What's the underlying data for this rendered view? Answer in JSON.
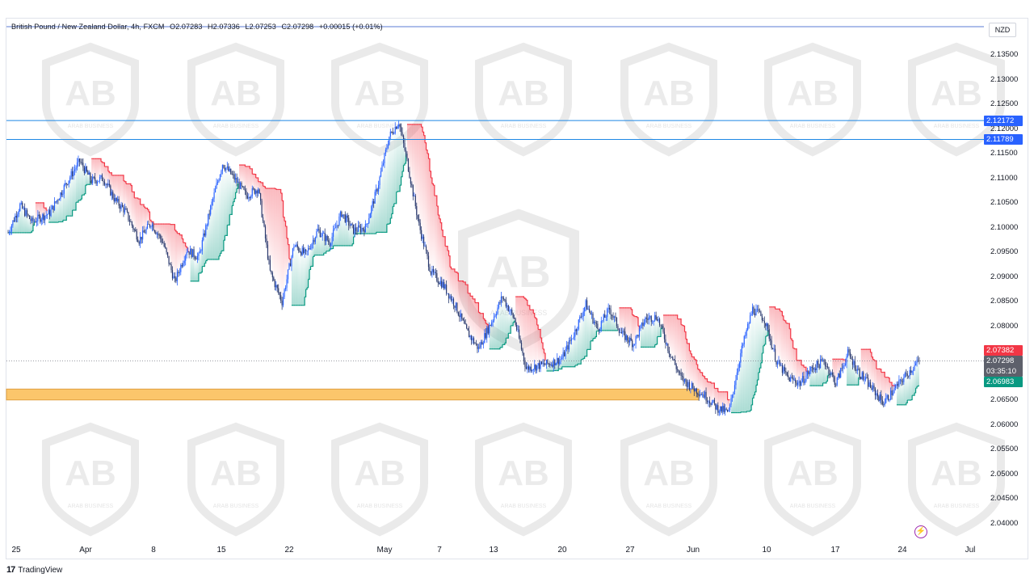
{
  "legend": {
    "symbol": "British Pound / New Zealand Dollar, 4h, FXCM",
    "open": "O2.07283",
    "high": "H2.07336",
    "low": "L2.07253",
    "close": "C2.07298",
    "change": "+0.00015 (+0.01%)"
  },
  "currency": "NZD",
  "y_ticks": [
    "2.13500",
    "2.13000",
    "2.12500",
    "2.12000",
    "2.11500",
    "2.11000",
    "2.10500",
    "2.10000",
    "2.09500",
    "2.09000",
    "2.08500",
    "2.08000",
    "2.07500",
    "2.07000",
    "2.06500",
    "2.06000",
    "2.05500",
    "2.05000",
    "2.04500",
    "2.04000"
  ],
  "x_ticks": [
    "25",
    "Apr",
    "8",
    "15",
    "22",
    "May",
    "7",
    "13",
    "20",
    "27",
    "Jun",
    "10",
    "17",
    "24",
    "Jul"
  ],
  "price_tags": {
    "level_upper": "2.12172",
    "level_lower": "2.11789",
    "red_level": "2.07382",
    "current": "2.07298",
    "countdown": "03:35:10",
    "green_level": "2.06983"
  },
  "footer": {
    "brand": "TradingView"
  },
  "watermark": {
    "text": "ARAB BUSINESS"
  },
  "colors": {
    "candle": "#2962ff",
    "candle_dark": "#2a3a6e",
    "support_zone": "#fbc66b",
    "resistance_line": "#1e88e5",
    "trail_red": "#f23645",
    "trail_green": "#089981",
    "tag_blue": "#2962ff",
    "tag_red": "#f23645",
    "tag_green": "#089981"
  },
  "chart_data": {
    "type": "candlestick",
    "title": "British Pound / New Zealand Dollar, 4h, FXCM",
    "ylim": [
      2.035,
      2.1375
    ],
    "close_path": [
      [
        0,
        2.099
      ],
      [
        10,
        2.1045
      ],
      [
        20,
        2.1012
      ],
      [
        35,
        2.103
      ],
      [
        50,
        2.1095
      ],
      [
        60,
        2.1135
      ],
      [
        70,
        2.1095
      ],
      [
        80,
        2.11
      ],
      [
        90,
        2.1055
      ],
      [
        98,
        2.1035
      ],
      [
        110,
        2.0975
      ],
      [
        120,
        2.101
      ],
      [
        130,
        2.097
      ],
      [
        140,
        2.089
      ],
      [
        150,
        2.0955
      ],
      [
        160,
        2.094
      ],
      [
        170,
        2.104
      ],
      [
        180,
        2.113
      ],
      [
        190,
        2.11
      ],
      [
        200,
        2.1065
      ],
      [
        210,
        2.108
      ],
      [
        220,
        2.091
      ],
      [
        230,
        2.085
      ],
      [
        240,
        2.0965
      ],
      [
        250,
        2.0945
      ],
      [
        260,
        2.0995
      ],
      [
        270,
        2.097
      ],
      [
        280,
        2.103
      ],
      [
        290,
        2.0995
      ],
      [
        300,
        2.1
      ],
      [
        310,
        2.108
      ],
      [
        320,
        2.1185
      ],
      [
        328,
        2.1215
      ],
      [
        335,
        2.1135
      ],
      [
        345,
        2.1005
      ],
      [
        355,
        2.091
      ],
      [
        365,
        2.0885
      ],
      [
        375,
        2.0845
      ],
      [
        385,
        2.079
      ],
      [
        395,
        2.0755
      ],
      [
        405,
        2.0805
      ],
      [
        415,
        2.086
      ],
      [
        425,
        2.0815
      ],
      [
        435,
        2.0715
      ],
      [
        445,
        2.072
      ],
      [
        455,
        2.0725
      ],
      [
        465,
        2.0735
      ],
      [
        475,
        2.0785
      ],
      [
        485,
        2.0845
      ],
      [
        495,
        2.0795
      ],
      [
        505,
        2.0835
      ],
      [
        515,
        2.0785
      ],
      [
        525,
        2.0765
      ],
      [
        535,
        2.0815
      ],
      [
        545,
        2.082
      ],
      [
        555,
        2.075
      ],
      [
        565,
        2.0695
      ],
      [
        575,
        2.0675
      ],
      [
        585,
        2.066
      ],
      [
        595,
        2.0635
      ],
      [
        605,
        2.0625
      ],
      [
        615,
        2.0745
      ],
      [
        625,
        2.0835
      ],
      [
        635,
        2.0815
      ],
      [
        645,
        2.073
      ],
      [
        655,
        2.0695
      ],
      [
        665,
        2.0685
      ],
      [
        675,
        2.0715
      ],
      [
        685,
        2.073
      ],
      [
        695,
        2.0685
      ],
      [
        705,
        2.0745
      ],
      [
        715,
        2.0705
      ],
      [
        725,
        2.0675
      ],
      [
        735,
        2.0645
      ],
      [
        745,
        2.0675
      ],
      [
        755,
        2.0705
      ],
      [
        765,
        2.073
      ]
    ],
    "support_zone": [
      2.0651,
      2.0673
    ],
    "resistance_levels": [
      2.12172,
      2.11789
    ],
    "current_price": 2.07298
  }
}
